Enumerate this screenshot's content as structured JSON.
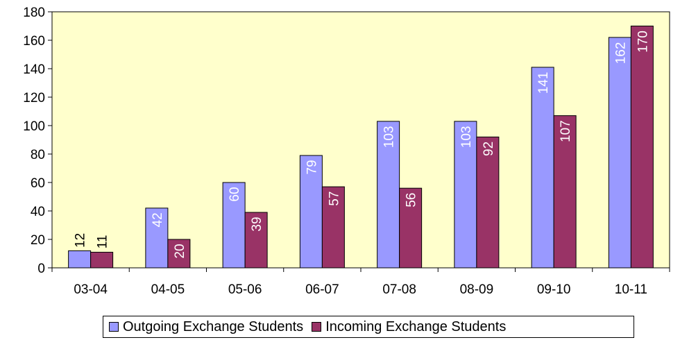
{
  "chart_data": {
    "type": "bar",
    "categories": [
      "03-04",
      "04-05",
      "05-06",
      "06-07",
      "07-08",
      "08-09",
      "09-10",
      "10-11"
    ],
    "series": [
      {
        "name": "Outgoing Exchange Students",
        "color": "#9999ff",
        "values": [
          12,
          42,
          60,
          79,
          103,
          103,
          141,
          162
        ]
      },
      {
        "name": "Incoming Exchange Students",
        "color": "#993366",
        "values": [
          11,
          20,
          39,
          57,
          56,
          92,
          107,
          170
        ]
      }
    ],
    "ylim": [
      0,
      180
    ],
    "yticks": [
      0,
      20,
      40,
      60,
      80,
      100,
      120,
      140,
      160,
      180
    ],
    "plot_background": "#ffffcc",
    "legend_position": "bottom",
    "data_label_colors": [
      "#ffffff",
      "#ffffff"
    ]
  }
}
